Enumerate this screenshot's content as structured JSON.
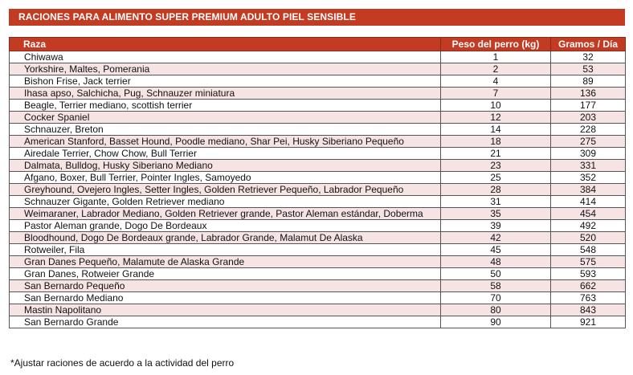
{
  "title": "RACIONES PARA ALIMENTO SUPER PREMIUM ADULTO PIEL SENSIBLE",
  "table": {
    "headers": {
      "raza": "Raza",
      "peso": "Peso del perro (kg)",
      "gramos": "Gramos / Día"
    },
    "rows": [
      {
        "raza": "Chiwawa",
        "peso": "1",
        "gramos": "32"
      },
      {
        "raza": "Yorkshire, Maltes, Pomerania",
        "peso": "2",
        "gramos": "53"
      },
      {
        "raza": "Bishon Frise, Jack terrier",
        "peso": "4",
        "gramos": "89"
      },
      {
        "raza": "Ihasa apso, Salchicha, Pug, Schnauzer miniatura",
        "peso": "7",
        "gramos": "136"
      },
      {
        "raza": "Beagle, Terrier mediano, scottish terrier",
        "peso": "10",
        "gramos": "177"
      },
      {
        "raza": "Cocker Spaniel",
        "peso": "12",
        "gramos": "203"
      },
      {
        "raza": "Schnauzer, Breton",
        "peso": "14",
        "gramos": "228"
      },
      {
        "raza": "American Stanford, Basset Hound, Poodle mediano, Shar Pei, Husky Siberiano Pequeño",
        "peso": "18",
        "gramos": "275"
      },
      {
        "raza": "Airedale Terrier, Chow Chow, Bull Terrier",
        "peso": "21",
        "gramos": "309"
      },
      {
        "raza": "Dalmata, Bulldog, Husky Siberiano Mediano",
        "peso": "23",
        "gramos": "331"
      },
      {
        "raza": "Afgano, Boxer, Bull Terrier, Pointer Ingles, Samoyedo",
        "peso": "25",
        "gramos": "352"
      },
      {
        "raza": "Greyhound, Ovejero Ingles, Setter Ingles, Golden Retriever Pequeño, Labrador Pequeño",
        "peso": "28",
        "gramos": "384"
      },
      {
        "raza": "Schnauzer Gigante, Golden Retriever mediano",
        "peso": "31",
        "gramos": "414"
      },
      {
        "raza": "Weimaraner, Labrador Mediano, Golden Retriever grande, Pastor Aleman estándar, Doberma",
        "peso": "35",
        "gramos": "454"
      },
      {
        "raza": "Pastor Aleman grande, Dogo De Bordeaux",
        "peso": "39",
        "gramos": "492"
      },
      {
        "raza": "Bloodhound, Dogo De Bordeaux  grande, Labrador Grande, Malamut De Alaska",
        "peso": "42",
        "gramos": "520"
      },
      {
        "raza": "Rotweiler, Fila",
        "peso": "45",
        "gramos": "548"
      },
      {
        "raza": "Gran Danes Pequeño, Malamute de Alaska Grande",
        "peso": "48",
        "gramos": "575"
      },
      {
        "raza": "Gran Danes, Rotweier Grande",
        "peso": "50",
        "gramos": "593"
      },
      {
        "raza": "San Bernardo Pequeño",
        "peso": "58",
        "gramos": "662"
      },
      {
        "raza": "San Bernardo Mediano",
        "peso": "70",
        "gramos": "763"
      },
      {
        "raza": "Mastin Napolitano",
        "peso": "80",
        "gramos": "843"
      },
      {
        "raza": "San Bernardo Grande",
        "peso": "90",
        "gramos": "921"
      }
    ]
  },
  "footnote": "*Ajustar raciones de acuerdo a la actividad del perro",
  "colors": {
    "header_red": "#c23b22",
    "row_tint": "#f6e4e4"
  }
}
